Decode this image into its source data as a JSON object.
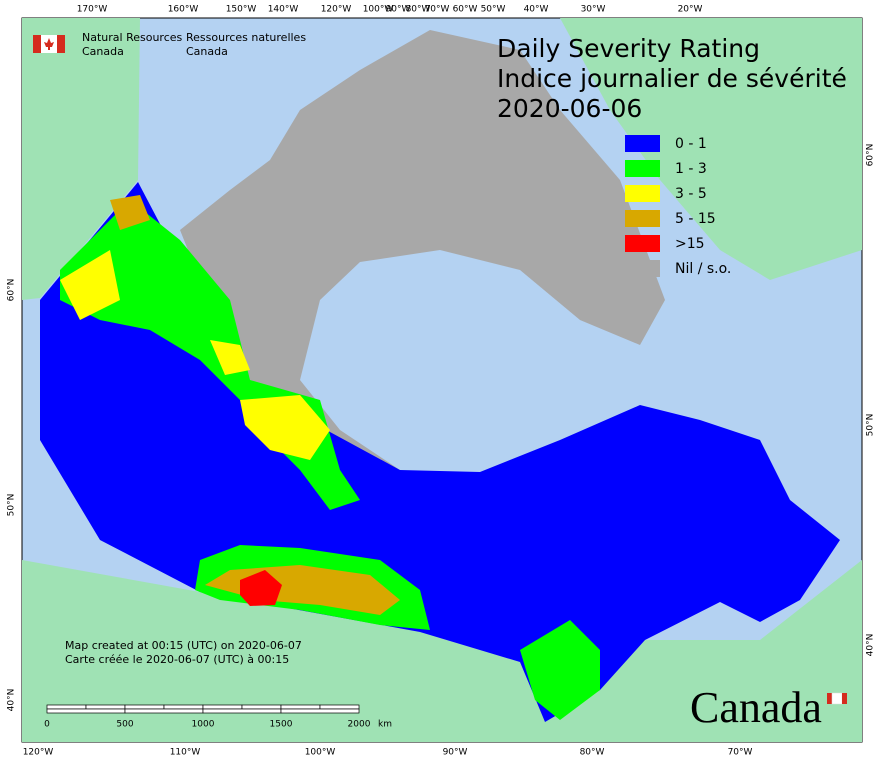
{
  "header": {
    "org_en": [
      "Natural Resources",
      "Canada"
    ],
    "org_fr": [
      "Ressources naturelles",
      "Canada"
    ]
  },
  "title": [
    "Daily Severity Rating",
    "Indice journalier de sévérité",
    "2020-06-06"
  ],
  "legend": [
    {
      "label": "0 - 1",
      "color": "#0000ff"
    },
    {
      "label": "1 - 3",
      "color": "#00ff00"
    },
    {
      "label": "3 - 5",
      "color": "#ffff00"
    },
    {
      "label": "5 - 15",
      "color": "#d8a800"
    },
    {
      "label": ">15",
      "color": "#ff0000"
    },
    {
      "label": "Nil / s.o.",
      "color": "#a8a8a8"
    }
  ],
  "top_labels": [
    "170°W",
    "160°W",
    "150°W",
    "140°W",
    "120°W",
    "100°W",
    "90°W",
    "80°W",
    "70°W",
    "60°W",
    "50°W",
    "40°W",
    "30°W",
    "20°W"
  ],
  "bottom_labels": [
    "120°W",
    "110°W",
    "100°W",
    "90°W",
    "80°W",
    "70°W"
  ],
  "left_labels": [
    "60°N",
    "50°N",
    "40°N"
  ],
  "right_labels": [
    "60°N",
    "50°N",
    "40°N"
  ],
  "footnote": [
    "Map created at 00:15 (UTC) on 2020-06-07",
    "Carte créée le 2020-06-07 (UTC) à 00:15"
  ],
  "scale_bar": {
    "labels": [
      "0",
      "500",
      "1000",
      "1500",
      "2000"
    ],
    "unit": "km"
  },
  "wordmark": "Canada"
}
